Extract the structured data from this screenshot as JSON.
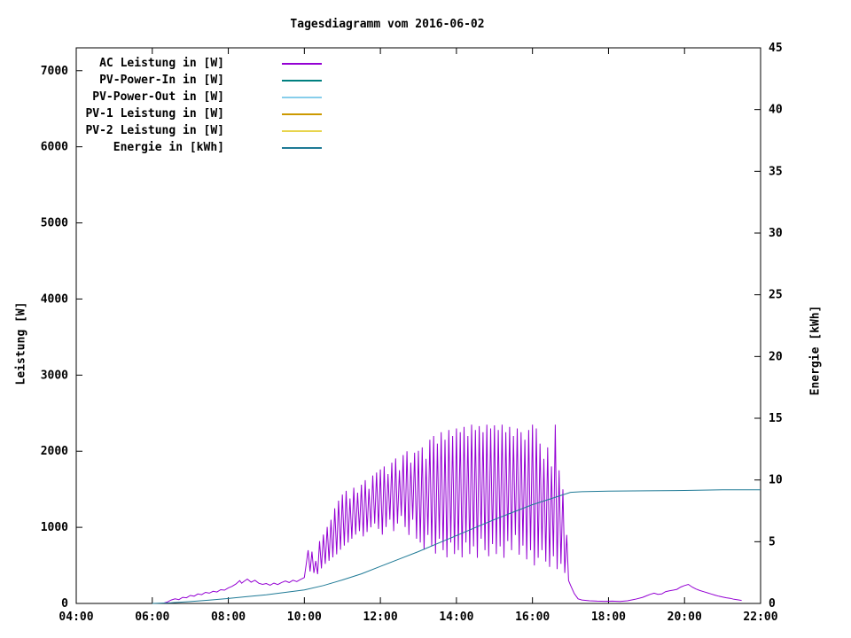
{
  "chart_data": {
    "type": "line",
    "title": "Tagesdiagramm vom 2016-06-02",
    "background_color": "#ffffff",
    "grid": false,
    "legend_position": "top-left-inside",
    "x_axis": {
      "label": "",
      "min": 4,
      "max": 22,
      "tick_values": [
        4,
        6,
        8,
        10,
        12,
        14,
        16,
        18,
        20,
        22
      ],
      "tick_labels": [
        "04:00",
        "06:00",
        "08:00",
        "10:00",
        "12:00",
        "14:00",
        "16:00",
        "18:00",
        "20:00",
        "22:00"
      ]
    },
    "y_left": {
      "label": "Leistung [W]",
      "min": 0,
      "max": 7300,
      "ticks": [
        0,
        1000,
        2000,
        3000,
        4000,
        5000,
        6000,
        7000
      ]
    },
    "y_right": {
      "label": "Energie [kWh]",
      "min": 0,
      "max": 45,
      "ticks": [
        0,
        5,
        10,
        15,
        20,
        25,
        30,
        35,
        40,
        45
      ]
    },
    "series": [
      {
        "name": "AC Leistung in [W]",
        "color": "#9400d3",
        "axis": "left",
        "points": [
          [
            6.3,
            5
          ],
          [
            6.4,
            20
          ],
          [
            6.5,
            45
          ],
          [
            6.6,
            60
          ],
          [
            6.7,
            50
          ],
          [
            6.8,
            80
          ],
          [
            6.9,
            75
          ],
          [
            7.0,
            105
          ],
          [
            7.1,
            95
          ],
          [
            7.2,
            125
          ],
          [
            7.3,
            115
          ],
          [
            7.4,
            145
          ],
          [
            7.5,
            135
          ],
          [
            7.6,
            160
          ],
          [
            7.7,
            150
          ],
          [
            7.8,
            180
          ],
          [
            7.9,
            175
          ],
          [
            8.0,
            205
          ],
          [
            8.1,
            225
          ],
          [
            8.2,
            255
          ],
          [
            8.3,
            300
          ],
          [
            8.35,
            265
          ],
          [
            8.4,
            285
          ],
          [
            8.5,
            320
          ],
          [
            8.6,
            280
          ],
          [
            8.7,
            305
          ],
          [
            8.8,
            265
          ],
          [
            8.9,
            250
          ],
          [
            9.0,
            262
          ],
          [
            9.1,
            240
          ],
          [
            9.2,
            268
          ],
          [
            9.3,
            248
          ],
          [
            9.4,
            275
          ],
          [
            9.5,
            295
          ],
          [
            9.6,
            275
          ],
          [
            9.7,
            305
          ],
          [
            9.8,
            288
          ],
          [
            9.9,
            315
          ],
          [
            10.0,
            340
          ],
          [
            10.05,
            520
          ],
          [
            10.1,
            700
          ],
          [
            10.15,
            420
          ],
          [
            10.2,
            680
          ],
          [
            10.25,
            400
          ],
          [
            10.3,
            560
          ],
          [
            10.35,
            385
          ],
          [
            10.4,
            820
          ],
          [
            10.45,
            460
          ],
          [
            10.5,
            905
          ],
          [
            10.55,
            520
          ],
          [
            10.6,
            1005
          ],
          [
            10.65,
            560
          ],
          [
            10.7,
            1100
          ],
          [
            10.75,
            605
          ],
          [
            10.8,
            1250
          ],
          [
            10.85,
            645
          ],
          [
            10.9,
            1350
          ],
          [
            10.95,
            705
          ],
          [
            11.0,
            1430
          ],
          [
            11.05,
            760
          ],
          [
            11.1,
            1480
          ],
          [
            11.15,
            800
          ],
          [
            11.2,
            1380
          ],
          [
            11.25,
            850
          ],
          [
            11.3,
            1520
          ],
          [
            11.35,
            905
          ],
          [
            11.4,
            1455
          ],
          [
            11.45,
            950
          ],
          [
            11.5,
            1560
          ],
          [
            11.55,
            880
          ],
          [
            11.6,
            1620
          ],
          [
            11.65,
            940
          ],
          [
            11.7,
            1505
          ],
          [
            11.75,
            1000
          ],
          [
            11.8,
            1680
          ],
          [
            11.85,
            1050
          ],
          [
            11.9,
            1720
          ],
          [
            11.95,
            980
          ],
          [
            12.0,
            1760
          ],
          [
            12.05,
            905
          ],
          [
            12.1,
            1800
          ],
          [
            12.15,
            1005
          ],
          [
            12.2,
            1700
          ],
          [
            12.25,
            1100
          ],
          [
            12.3,
            1850
          ],
          [
            12.35,
            950
          ],
          [
            12.4,
            1905
          ],
          [
            12.45,
            1050
          ],
          [
            12.5,
            1750
          ],
          [
            12.55,
            1150
          ],
          [
            12.6,
            1950
          ],
          [
            12.65,
            1005
          ],
          [
            12.7,
            2000
          ],
          [
            12.75,
            900
          ],
          [
            12.8,
            1850
          ],
          [
            12.85,
            1100
          ],
          [
            12.9,
            1980
          ],
          [
            12.95,
            850
          ],
          [
            13.0,
            2005
          ],
          [
            13.05,
            800
          ],
          [
            13.1,
            2050
          ],
          [
            13.15,
            705
          ],
          [
            13.2,
            1900
          ],
          [
            13.25,
            900
          ],
          [
            13.3,
            2150
          ],
          [
            13.35,
            750
          ],
          [
            13.4,
            2200
          ],
          [
            13.45,
            655
          ],
          [
            13.5,
            2100
          ],
          [
            13.55,
            850
          ],
          [
            13.6,
            2250
          ],
          [
            13.65,
            700
          ],
          [
            13.7,
            2150
          ],
          [
            13.75,
            605
          ],
          [
            13.8,
            2280
          ],
          [
            13.85,
            800
          ],
          [
            13.9,
            2200
          ],
          [
            13.95,
            650
          ],
          [
            14.0,
            2300
          ],
          [
            14.05,
            700
          ],
          [
            14.1,
            2250
          ],
          [
            14.15,
            605
          ],
          [
            14.2,
            2320
          ],
          [
            14.25,
            800
          ],
          [
            14.3,
            2200
          ],
          [
            14.35,
            650
          ],
          [
            14.4,
            2350
          ],
          [
            14.45,
            750
          ],
          [
            14.5,
            2280
          ],
          [
            14.55,
            600
          ],
          [
            14.6,
            2330
          ],
          [
            14.65,
            850
          ],
          [
            14.7,
            2250
          ],
          [
            14.75,
            700
          ],
          [
            14.8,
            2350
          ],
          [
            14.85,
            620
          ],
          [
            14.9,
            2300
          ],
          [
            14.95,
            780
          ],
          [
            15.0,
            2340
          ],
          [
            15.05,
            650
          ],
          [
            15.1,
            2280
          ],
          [
            15.15,
            750
          ],
          [
            15.2,
            2350
          ],
          [
            15.25,
            600
          ],
          [
            15.3,
            2250
          ],
          [
            15.35,
            820
          ],
          [
            15.4,
            2320
          ],
          [
            15.45,
            700
          ],
          [
            15.5,
            2200
          ],
          [
            15.55,
            900
          ],
          [
            15.6,
            2300
          ],
          [
            15.65,
            640
          ],
          [
            15.7,
            2250
          ],
          [
            15.75,
            760
          ],
          [
            15.8,
            2150
          ],
          [
            15.85,
            580
          ],
          [
            15.9,
            2280
          ],
          [
            15.95,
            700
          ],
          [
            16.0,
            2350
          ],
          [
            16.05,
            500
          ],
          [
            16.1,
            2300
          ],
          [
            16.15,
            600
          ],
          [
            16.2,
            2100
          ],
          [
            16.25,
            700
          ],
          [
            16.3,
            1900
          ],
          [
            16.35,
            550
          ],
          [
            16.4,
            2050
          ],
          [
            16.45,
            480
          ],
          [
            16.5,
            1800
          ],
          [
            16.55,
            620
          ],
          [
            16.6,
            2350
          ],
          [
            16.65,
            450
          ],
          [
            16.7,
            1750
          ],
          [
            16.75,
            520
          ],
          [
            16.8,
            1500
          ],
          [
            16.85,
            400
          ],
          [
            16.9,
            900
          ],
          [
            16.95,
            300
          ],
          [
            17.0,
            240
          ],
          [
            17.1,
            130
          ],
          [
            17.2,
            60
          ],
          [
            17.3,
            45
          ],
          [
            17.5,
            35
          ],
          [
            17.7,
            30
          ],
          [
            17.9,
            28
          ],
          [
            18.1,
            30
          ],
          [
            18.3,
            26
          ],
          [
            18.5,
            35
          ],
          [
            18.7,
            55
          ],
          [
            18.9,
            80
          ],
          [
            19.0,
            100
          ],
          [
            19.1,
            120
          ],
          [
            19.2,
            135
          ],
          [
            19.3,
            120
          ],
          [
            19.4,
            125
          ],
          [
            19.5,
            155
          ],
          [
            19.6,
            165
          ],
          [
            19.7,
            175
          ],
          [
            19.8,
            185
          ],
          [
            19.9,
            215
          ],
          [
            20.0,
            235
          ],
          [
            20.1,
            250
          ],
          [
            20.2,
            215
          ],
          [
            20.3,
            190
          ],
          [
            20.4,
            170
          ],
          [
            20.5,
            155
          ],
          [
            20.6,
            140
          ],
          [
            20.7,
            125
          ],
          [
            20.8,
            110
          ],
          [
            20.9,
            95
          ],
          [
            21.0,
            85
          ],
          [
            21.1,
            75
          ],
          [
            21.2,
            68
          ],
          [
            21.3,
            55
          ],
          [
            21.4,
            48
          ],
          [
            21.5,
            40
          ]
        ]
      },
      {
        "name": "PV-Power-In in [W]",
        "color": "#008080",
        "axis": "left",
        "points": []
      },
      {
        "name": "PV-Power-Out in [W]",
        "color": "#87ceeb",
        "axis": "left",
        "points": []
      },
      {
        "name": "PV-1 Leistung in [W]",
        "color": "#cc9900",
        "axis": "left",
        "points": []
      },
      {
        "name": "PV-2 Leistung in [W]",
        "color": "#e8d44d",
        "axis": "left",
        "points": []
      },
      {
        "name": "Energie in [kWh]",
        "color": "#1f7a96",
        "axis": "right",
        "points": [
          [
            6.0,
            0
          ],
          [
            6.5,
            0.05
          ],
          [
            7.0,
            0.15
          ],
          [
            7.5,
            0.27
          ],
          [
            8.0,
            0.4
          ],
          [
            8.5,
            0.55
          ],
          [
            9.0,
            0.7
          ],
          [
            9.5,
            0.9
          ],
          [
            10.0,
            1.1
          ],
          [
            10.5,
            1.45
          ],
          [
            11.0,
            1.9
          ],
          [
            11.5,
            2.4
          ],
          [
            12.0,
            3.0
          ],
          [
            12.5,
            3.6
          ],
          [
            13.0,
            4.2
          ],
          [
            13.5,
            4.85
          ],
          [
            14.0,
            5.5
          ],
          [
            14.5,
            6.15
          ],
          [
            15.0,
            6.8
          ],
          [
            15.5,
            7.4
          ],
          [
            16.0,
            8.0
          ],
          [
            16.5,
            8.5
          ],
          [
            16.8,
            8.8
          ],
          [
            17.0,
            9.0
          ],
          [
            17.3,
            9.05
          ],
          [
            18.0,
            9.1
          ],
          [
            19.0,
            9.12
          ],
          [
            20.0,
            9.15
          ],
          [
            21.0,
            9.2
          ],
          [
            22.0,
            9.2
          ]
        ]
      }
    ]
  }
}
